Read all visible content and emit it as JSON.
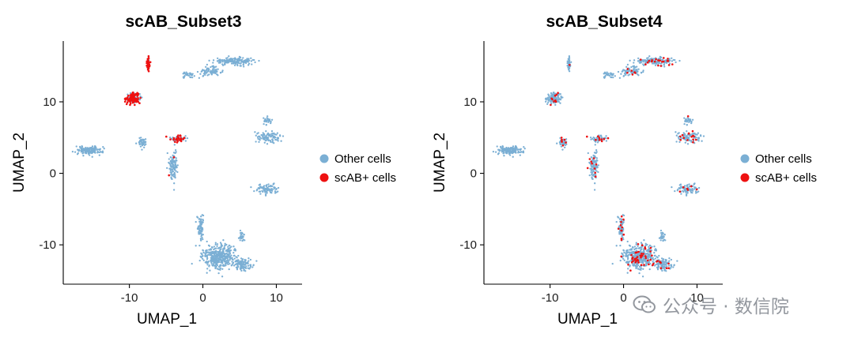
{
  "chart_data": [
    {
      "type": "scatter",
      "title": "scAB_Subset3",
      "xlabel": "UMAP_1",
      "ylabel": "UMAP_2",
      "xlim": [
        -19,
        13.5
      ],
      "ylim": [
        -15.5,
        18.5
      ],
      "x_ticks": [
        -10,
        0,
        10
      ],
      "y_ticks": [
        -10,
        0,
        10
      ],
      "grid": false,
      "legend_position": "right",
      "series": [
        {
          "name": "Other cells",
          "color": "#7bafd4"
        },
        {
          "name": "scAB+ cells",
          "color": "#ee1111"
        }
      ],
      "clusters": [
        {
          "cx": 4.3,
          "cy": 15.7,
          "sx": 2.6,
          "sy": 0.45,
          "n": 170,
          "highlight": 0.0
        },
        {
          "cx": 1.0,
          "cy": 14.2,
          "sx": 1.4,
          "sy": 0.55,
          "n": 80,
          "highlight": 0.0
        },
        {
          "cx": -2.0,
          "cy": 13.7,
          "sx": 0.7,
          "sy": 0.35,
          "n": 30,
          "highlight": 0.0
        },
        {
          "cx": -7.4,
          "cy": 15.4,
          "sx": 0.25,
          "sy": 1.0,
          "n": 45,
          "highlight": 0.9
        },
        {
          "cx": -9.5,
          "cy": 10.5,
          "sx": 0.85,
          "sy": 0.65,
          "n": 130,
          "highlight": 0.8
        },
        {
          "cx": -15.5,
          "cy": 3.2,
          "sx": 1.6,
          "sy": 0.55,
          "n": 150,
          "highlight": 0.0
        },
        {
          "cx": -8.3,
          "cy": 4.3,
          "sx": 0.55,
          "sy": 0.6,
          "n": 45,
          "highlight": 0.0
        },
        {
          "cx": -3.2,
          "cy": 4.9,
          "sx": 1.1,
          "sy": 0.45,
          "n": 55,
          "highlight": 0.55
        },
        {
          "cx": -4.0,
          "cy": 1.2,
          "sx": 0.5,
          "sy": 1.9,
          "n": 110,
          "highlight": 0.03
        },
        {
          "cx": 9.0,
          "cy": 5.1,
          "sx": 1.4,
          "sy": 0.75,
          "n": 100,
          "highlight": 0.0
        },
        {
          "cx": 8.8,
          "cy": 7.3,
          "sx": 0.6,
          "sy": 0.5,
          "n": 30,
          "highlight": 0.0
        },
        {
          "cx": 8.8,
          "cy": -2.2,
          "sx": 1.5,
          "sy": 0.55,
          "n": 95,
          "highlight": 0.0
        },
        {
          "cx": 2.3,
          "cy": -11.6,
          "sx": 2.2,
          "sy": 1.6,
          "n": 420,
          "highlight": 0.0
        },
        {
          "cx": -0.3,
          "cy": -7.6,
          "sx": 0.45,
          "sy": 1.6,
          "n": 70,
          "highlight": 0.0
        },
        {
          "cx": 5.4,
          "cy": -12.8,
          "sx": 1.1,
          "sy": 0.7,
          "n": 90,
          "highlight": 0.0
        },
        {
          "cx": 5.3,
          "cy": -8.8,
          "sx": 0.35,
          "sy": 0.65,
          "n": 25,
          "highlight": 0.0
        }
      ]
    },
    {
      "type": "scatter",
      "title": "scAB_Subset4",
      "xlabel": "UMAP_1",
      "ylabel": "UMAP_2",
      "xlim": [
        -19,
        13.5
      ],
      "ylim": [
        -15.5,
        18.5
      ],
      "x_ticks": [
        -10,
        0,
        10
      ],
      "y_ticks": [
        -10,
        0,
        10
      ],
      "grid": false,
      "legend_position": "right",
      "series": [
        {
          "name": "Other cells",
          "color": "#7bafd4"
        },
        {
          "name": "scAB+ cells",
          "color": "#ee1111"
        }
      ],
      "clusters": [
        {
          "cx": 4.3,
          "cy": 15.7,
          "sx": 2.6,
          "sy": 0.45,
          "n": 170,
          "highlight": 0.12
        },
        {
          "cx": 1.0,
          "cy": 14.2,
          "sx": 1.4,
          "sy": 0.55,
          "n": 80,
          "highlight": 0.08
        },
        {
          "cx": -2.0,
          "cy": 13.7,
          "sx": 0.7,
          "sy": 0.35,
          "n": 30,
          "highlight": 0.05
        },
        {
          "cx": -7.4,
          "cy": 15.4,
          "sx": 0.25,
          "sy": 1.0,
          "n": 45,
          "highlight": 0.02
        },
        {
          "cx": -9.5,
          "cy": 10.5,
          "sx": 0.85,
          "sy": 0.65,
          "n": 130,
          "highlight": 0.08
        },
        {
          "cx": -15.5,
          "cy": 3.2,
          "sx": 1.6,
          "sy": 0.55,
          "n": 150,
          "highlight": 0.02
        },
        {
          "cx": -8.3,
          "cy": 4.3,
          "sx": 0.55,
          "sy": 0.6,
          "n": 45,
          "highlight": 0.18
        },
        {
          "cx": -3.2,
          "cy": 4.9,
          "sx": 1.1,
          "sy": 0.45,
          "n": 55,
          "highlight": 0.08
        },
        {
          "cx": -4.0,
          "cy": 1.2,
          "sx": 0.5,
          "sy": 1.9,
          "n": 110,
          "highlight": 0.08
        },
        {
          "cx": 9.0,
          "cy": 5.1,
          "sx": 1.4,
          "sy": 0.75,
          "n": 100,
          "highlight": 0.12
        },
        {
          "cx": 8.8,
          "cy": 7.3,
          "sx": 0.6,
          "sy": 0.5,
          "n": 30,
          "highlight": 0.1
        },
        {
          "cx": 8.8,
          "cy": -2.2,
          "sx": 1.5,
          "sy": 0.55,
          "n": 95,
          "highlight": 0.08
        },
        {
          "cx": 2.3,
          "cy": -11.6,
          "sx": 2.2,
          "sy": 1.6,
          "n": 420,
          "highlight": 0.1
        },
        {
          "cx": -0.3,
          "cy": -7.6,
          "sx": 0.45,
          "sy": 1.6,
          "n": 70,
          "highlight": 0.15
        },
        {
          "cx": 5.4,
          "cy": -12.8,
          "sx": 1.1,
          "sy": 0.7,
          "n": 90,
          "highlight": 0.1
        },
        {
          "cx": 5.3,
          "cy": -8.8,
          "sx": 0.35,
          "sy": 0.65,
          "n": 25,
          "highlight": 0.05
        }
      ]
    }
  ],
  "watermark": {
    "text": "公众号 · 数信院",
    "icon": "wechat-icon",
    "color": "#8a8f96"
  }
}
